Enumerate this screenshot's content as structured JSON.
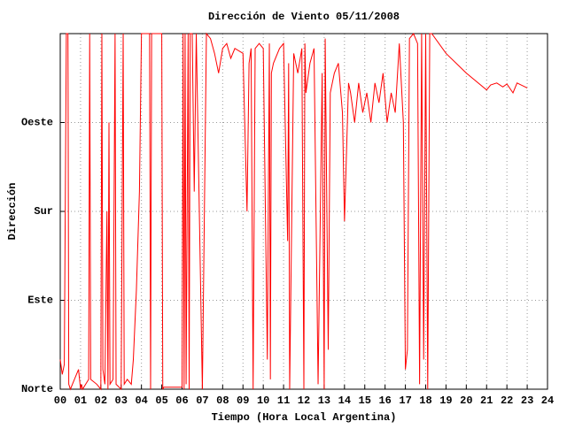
{
  "chart_data": {
    "type": "line",
    "title": "Dirección de Viento 05/11/2008",
    "xlabel": "Tiempo (Hora Local Argentina)",
    "ylabel": "Dirección",
    "color": "#ff0000",
    "grid": true,
    "xlim": [
      0,
      24
    ],
    "ylim": [
      0,
      360
    ],
    "xticks": [
      {
        "value": 0,
        "label": "00"
      },
      {
        "value": 1,
        "label": "01"
      },
      {
        "value": 2,
        "label": "02"
      },
      {
        "value": 3,
        "label": "03"
      },
      {
        "value": 4,
        "label": "04"
      },
      {
        "value": 5,
        "label": "05"
      },
      {
        "value": 6,
        "label": "06"
      },
      {
        "value": 7,
        "label": "07"
      },
      {
        "value": 8,
        "label": "08"
      },
      {
        "value": 9,
        "label": "09"
      },
      10,
      11,
      12,
      13,
      14,
      15,
      16,
      17,
      18,
      19,
      20,
      21,
      22,
      23,
      24
    ],
    "yticks": [
      {
        "value": 0,
        "label": "Norte"
      },
      {
        "value": 90,
        "label": "Este"
      },
      {
        "value": 180,
        "label": "Sur"
      },
      {
        "value": 270,
        "label": "Oeste"
      }
    ],
    "x": [
      0,
      0.1,
      0.2,
      0.3,
      0.38,
      0.42,
      0.5,
      0.7,
      0.9,
      1.0,
      1.05,
      1.1,
      1.4,
      1.45,
      1.5,
      1.8,
      2.0,
      2.05,
      2.1,
      2.2,
      2.3,
      2.35,
      2.4,
      2.45,
      2.6,
      2.7,
      2.75,
      3.0,
      3.1,
      3.15,
      3.3,
      3.5,
      3.6,
      3.75,
      3.9,
      4.0,
      4.4,
      4.45,
      4.5,
      5.0,
      5.05,
      5.1,
      5.5,
      6.0,
      6.05,
      6.1,
      6.15,
      6.2,
      6.3,
      6.35,
      6.4,
      6.5,
      6.6,
      6.7,
      7.0,
      7.2,
      7.4,
      7.6,
      7.8,
      8.0,
      8.2,
      8.4,
      8.6,
      9.0,
      9.2,
      9.3,
      9.4,
      9.5,
      9.6,
      9.8,
      10.0,
      10.2,
      10.3,
      10.35,
      10.4,
      10.5,
      10.8,
      11.0,
      11.2,
      11.25,
      11.3,
      11.5,
      11.7,
      11.9,
      12.0,
      12.05,
      12.1,
      12.3,
      12.5,
      12.7,
      12.9,
      13.0,
      13.05,
      13.2,
      13.3,
      13.5,
      13.7,
      13.9,
      14.0,
      14.2,
      14.3,
      14.5,
      14.7,
      14.9,
      15.1,
      15.3,
      15.5,
      15.7,
      15.9,
      16.1,
      16.3,
      16.5,
      16.7,
      16.9,
      17.0,
      17.1,
      17.2,
      17.4,
      17.6,
      17.7,
      17.8,
      17.9,
      18.0,
      18.1,
      18.2,
      18.3,
      19.0,
      20.0,
      21.0,
      21.2,
      21.5,
      21.8,
      22.0,
      22.3,
      22.5,
      22.7,
      23.0
    ],
    "values": [
      30,
      15,
      25,
      360,
      360,
      5,
      0,
      10,
      20,
      0,
      5,
      0,
      10,
      360,
      10,
      5,
      0,
      360,
      20,
      5,
      180,
      0,
      270,
      5,
      10,
      360,
      5,
      0,
      360,
      5,
      10,
      5,
      30,
      100,
      200,
      360,
      360,
      0,
      360,
      360,
      0,
      2,
      2,
      2,
      360,
      0,
      360,
      5,
      360,
      0,
      360,
      360,
      200,
      360,
      0,
      360,
      355,
      340,
      320,
      345,
      350,
      335,
      345,
      340,
      180,
      330,
      345,
      0,
      345,
      350,
      345,
      30,
      350,
      10,
      320,
      330,
      345,
      350,
      150,
      330,
      0,
      340,
      320,
      345,
      0,
      350,
      300,
      330,
      345,
      5,
      320,
      0,
      355,
      40,
      300,
      320,
      330,
      280,
      170,
      310,
      300,
      270,
      310,
      280,
      300,
      270,
      310,
      290,
      320,
      270,
      300,
      280,
      350,
      270,
      20,
      40,
      355,
      360,
      350,
      5,
      360,
      30,
      360,
      0,
      360,
      360,
      340,
      320,
      303,
      308,
      310,
      306,
      309,
      300,
      310,
      308,
      305
    ]
  }
}
